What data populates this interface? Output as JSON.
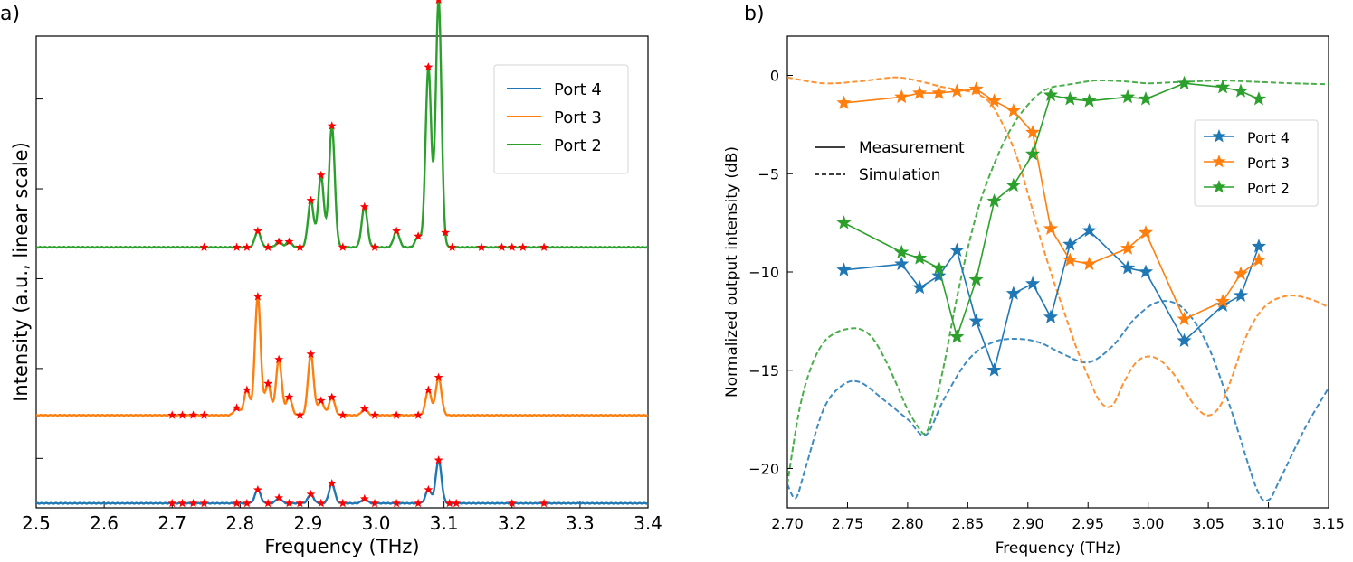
{
  "colors": {
    "port4": "#1f77b4",
    "port3": "#ff7f0e",
    "port2": "#2ca02c",
    "marker": "#ff0000",
    "axis": "#000000"
  },
  "chart_data": [
    {
      "panel_label": "a)",
      "type": "line",
      "title": "",
      "xlabel": "Frequency (THz)",
      "ylabel": "Intensity (a.u., linear scale)",
      "xlim": [
        2.5,
        3.4
      ],
      "ylim": [
        -0.05,
        5.2
      ],
      "xticks": [
        "2.5",
        "2.6",
        "2.7",
        "2.8",
        "2.9",
        "3.0",
        "3.1",
        "3.2",
        "3.3",
        "3.4"
      ],
      "yticks_unlabeled": [
        0.5,
        1.5,
        2.5,
        3.5,
        4.5
      ],
      "legend": {
        "position": "top-right",
        "entries": [
          "Port 4",
          "Port 3",
          "Port 2"
        ]
      },
      "series": [
        {
          "name": "Port 4",
          "color_key": "port4",
          "baseline": 0.0,
          "markers": [
            2.7,
            2.715,
            2.731,
            2.747,
            2.795,
            2.81,
            2.826,
            2.841,
            2.857,
            2.872,
            2.888,
            2.904,
            2.919,
            2.935,
            2.951,
            2.983,
            2.998,
            3.03,
            3.062,
            3.077,
            3.092,
            3.108,
            3.118,
            3.2,
            3.247
          ],
          "peaks": [
            [
              2.826,
              0.15
            ],
            [
              2.857,
              0.06
            ],
            [
              2.904,
              0.1
            ],
            [
              2.935,
              0.22
            ],
            [
              2.983,
              0.05
            ],
            [
              3.077,
              0.15
            ],
            [
              3.092,
              0.48
            ]
          ]
        },
        {
          "name": "Port 3",
          "color_key": "port3",
          "baseline": 0.98,
          "markers": [
            2.7,
            2.715,
            2.731,
            2.747,
            2.795,
            2.81,
            2.826,
            2.841,
            2.857,
            2.872,
            2.888,
            2.904,
            2.919,
            2.935,
            2.951,
            2.983,
            2.998,
            3.03,
            3.062,
            3.077,
            3.092
          ],
          "peaks": [
            [
              2.795,
              0.08
            ],
            [
              2.81,
              0.28
            ],
            [
              2.826,
              1.32
            ],
            [
              2.841,
              0.35
            ],
            [
              2.857,
              0.62
            ],
            [
              2.872,
              0.2
            ],
            [
              2.904,
              0.68
            ],
            [
              2.919,
              0.16
            ],
            [
              2.935,
              0.2
            ],
            [
              2.983,
              0.07
            ],
            [
              3.077,
              0.28
            ],
            [
              3.092,
              0.42
            ]
          ]
        },
        {
          "name": "Port 2",
          "color_key": "port2",
          "baseline": 2.85,
          "markers": [
            2.747,
            2.795,
            2.81,
            2.826,
            2.841,
            2.857,
            2.872,
            2.888,
            2.904,
            2.919,
            2.935,
            2.951,
            2.983,
            2.998,
            3.03,
            3.062,
            3.077,
            3.092,
            3.102,
            3.112,
            3.155,
            3.185,
            3.2,
            3.216,
            3.247
          ],
          "peaks": [
            [
              2.826,
              0.18
            ],
            [
              2.857,
              0.06
            ],
            [
              2.872,
              0.06
            ],
            [
              2.904,
              0.52
            ],
            [
              2.919,
              0.8
            ],
            [
              2.935,
              1.35
            ],
            [
              2.983,
              0.45
            ],
            [
              3.03,
              0.18
            ],
            [
              3.062,
              0.12
            ],
            [
              3.077,
              2.0
            ],
            [
              3.092,
              2.75
            ]
          ]
        }
      ]
    },
    {
      "panel_label": "b)",
      "type": "line",
      "title": "",
      "xlabel": "Frequency (THz)",
      "ylabel": "Normalized output intensity (dB)",
      "xlim": [
        2.7,
        3.15
      ],
      "ylim": [
        -22,
        2
      ],
      "xticks": [
        "2.70",
        "2.75",
        "2.80",
        "2.85",
        "2.90",
        "2.95",
        "3.00",
        "3.05",
        "3.10",
        "3.15"
      ],
      "yticks": [
        "0",
        "-5",
        "-10",
        "-15",
        "-20"
      ],
      "legend": {
        "position": "right",
        "entries": [
          "Port 4",
          "Port 3",
          "Port 2"
        ]
      },
      "style_legend": {
        "position": "upper-left",
        "entries": [
          "Measurement",
          "Simulation"
        ]
      },
      "series": [
        {
          "name": "Port 4",
          "color_key": "port4",
          "x": [
            2.747,
            2.795,
            2.81,
            2.826,
            2.841,
            2.857,
            2.872,
            2.888,
            2.904,
            2.919,
            2.935,
            2.951,
            2.983,
            2.998,
            3.03,
            3.062,
            3.077,
            3.092
          ],
          "y": [
            -9.9,
            -9.6,
            -10.8,
            -10.2,
            -8.9,
            -12.5,
            -15.0,
            -11.1,
            -10.6,
            -12.3,
            -8.6,
            -7.9,
            -9.8,
            -10.0,
            -13.5,
            -11.7,
            -11.2,
            -8.7
          ]
        },
        {
          "name": "Port 3",
          "color_key": "port3",
          "x": [
            2.747,
            2.795,
            2.81,
            2.826,
            2.841,
            2.857,
            2.872,
            2.888,
            2.904,
            2.919,
            2.935,
            2.951,
            2.983,
            2.998,
            3.03,
            3.062,
            3.077,
            3.092
          ],
          "y": [
            -1.4,
            -1.1,
            -0.9,
            -0.9,
            -0.8,
            -0.7,
            -1.3,
            -1.8,
            -2.9,
            -7.8,
            -9.4,
            -9.6,
            -8.8,
            -8.0,
            -12.4,
            -11.5,
            -10.1,
            -9.4
          ]
        },
        {
          "name": "Port 2",
          "color_key": "port2",
          "x": [
            2.747,
            2.795,
            2.81,
            2.826,
            2.841,
            2.857,
            2.872,
            2.888,
            2.904,
            2.919,
            2.935,
            2.951,
            2.983,
            2.998,
            3.03,
            3.062,
            3.077,
            3.092
          ],
          "y": [
            -7.5,
            -9.0,
            -9.3,
            -9.8,
            -13.3,
            -10.4,
            -6.4,
            -5.6,
            -4.0,
            -1.0,
            -1.2,
            -1.3,
            -1.1,
            -1.2,
            -0.4,
            -0.6,
            -0.8,
            -1.2
          ]
        }
      ],
      "simulation": [
        {
          "name": "Port 4 simulation",
          "color_key": "port4",
          "x": [
            2.7,
            2.707,
            2.715,
            2.73,
            2.745,
            2.76,
            2.78,
            2.8,
            2.815,
            2.83,
            2.85,
            2.87,
            2.89,
            2.91,
            2.93,
            2.95,
            2.97,
            2.99,
            3.01,
            3.03,
            3.05,
            3.07,
            3.09,
            3.1,
            3.11,
            3.13,
            3.15
          ],
          "y": [
            -20.8,
            -21.5,
            -20.0,
            -17.0,
            -15.8,
            -15.6,
            -16.5,
            -17.5,
            -18.3,
            -16.5,
            -14.5,
            -13.6,
            -13.4,
            -13.6,
            -14.2,
            -14.6,
            -13.8,
            -12.3,
            -11.5,
            -11.9,
            -13.8,
            -17.2,
            -21.0,
            -21.6,
            -20.5,
            -18.0,
            -15.9
          ]
        },
        {
          "name": "Port 3 simulation",
          "color_key": "port3",
          "x": [
            2.7,
            2.73,
            2.76,
            2.79,
            2.81,
            2.83,
            2.85,
            2.86,
            2.87,
            2.88,
            2.89,
            2.9,
            2.91,
            2.92,
            2.93,
            2.94,
            2.95,
            2.96,
            2.97,
            2.98,
            2.99,
            3.0,
            3.01,
            3.02,
            3.03,
            3.04,
            3.05,
            3.06,
            3.07,
            3.08,
            3.09,
            3.1,
            3.11,
            3.12,
            3.13,
            3.14,
            3.15
          ],
          "y": [
            -0.1,
            -0.4,
            -0.3,
            -0.1,
            -0.3,
            -0.6,
            -0.8,
            -1.0,
            -1.5,
            -2.6,
            -4.0,
            -6.0,
            -8.2,
            -10.2,
            -12.0,
            -13.8,
            -15.3,
            -16.6,
            -16.8,
            -15.6,
            -14.6,
            -14.3,
            -14.5,
            -15.1,
            -16.0,
            -16.9,
            -17.3,
            -16.8,
            -15.3,
            -13.5,
            -12.3,
            -11.6,
            -11.3,
            -11.2,
            -11.3,
            -11.5,
            -11.8
          ]
        },
        {
          "name": "Port 2 simulation",
          "color_key": "port2",
          "x": [
            2.7,
            2.71,
            2.72,
            2.73,
            2.74,
            2.75,
            2.76,
            2.77,
            2.78,
            2.79,
            2.8,
            2.81,
            2.815,
            2.82,
            2.83,
            2.84,
            2.85,
            2.86,
            2.87,
            2.88,
            2.89,
            2.9,
            2.91,
            2.92,
            2.93,
            2.94,
            2.95,
            2.96,
            2.98,
            3.0,
            3.02,
            3.04,
            3.06,
            3.08,
            3.1,
            3.12,
            3.15
          ],
          "y": [
            -20.8,
            -17.0,
            -14.8,
            -13.6,
            -13.1,
            -12.9,
            -12.9,
            -13.3,
            -14.3,
            -15.6,
            -17.0,
            -18.0,
            -18.2,
            -17.4,
            -14.8,
            -11.6,
            -8.8,
            -6.5,
            -4.8,
            -3.4,
            -2.3,
            -1.5,
            -0.9,
            -0.6,
            -0.5,
            -0.4,
            -0.3,
            -0.25,
            -0.3,
            -0.4,
            -0.35,
            -0.3,
            -0.25,
            -0.3,
            -0.35,
            -0.4,
            -0.45
          ]
        }
      ]
    }
  ]
}
